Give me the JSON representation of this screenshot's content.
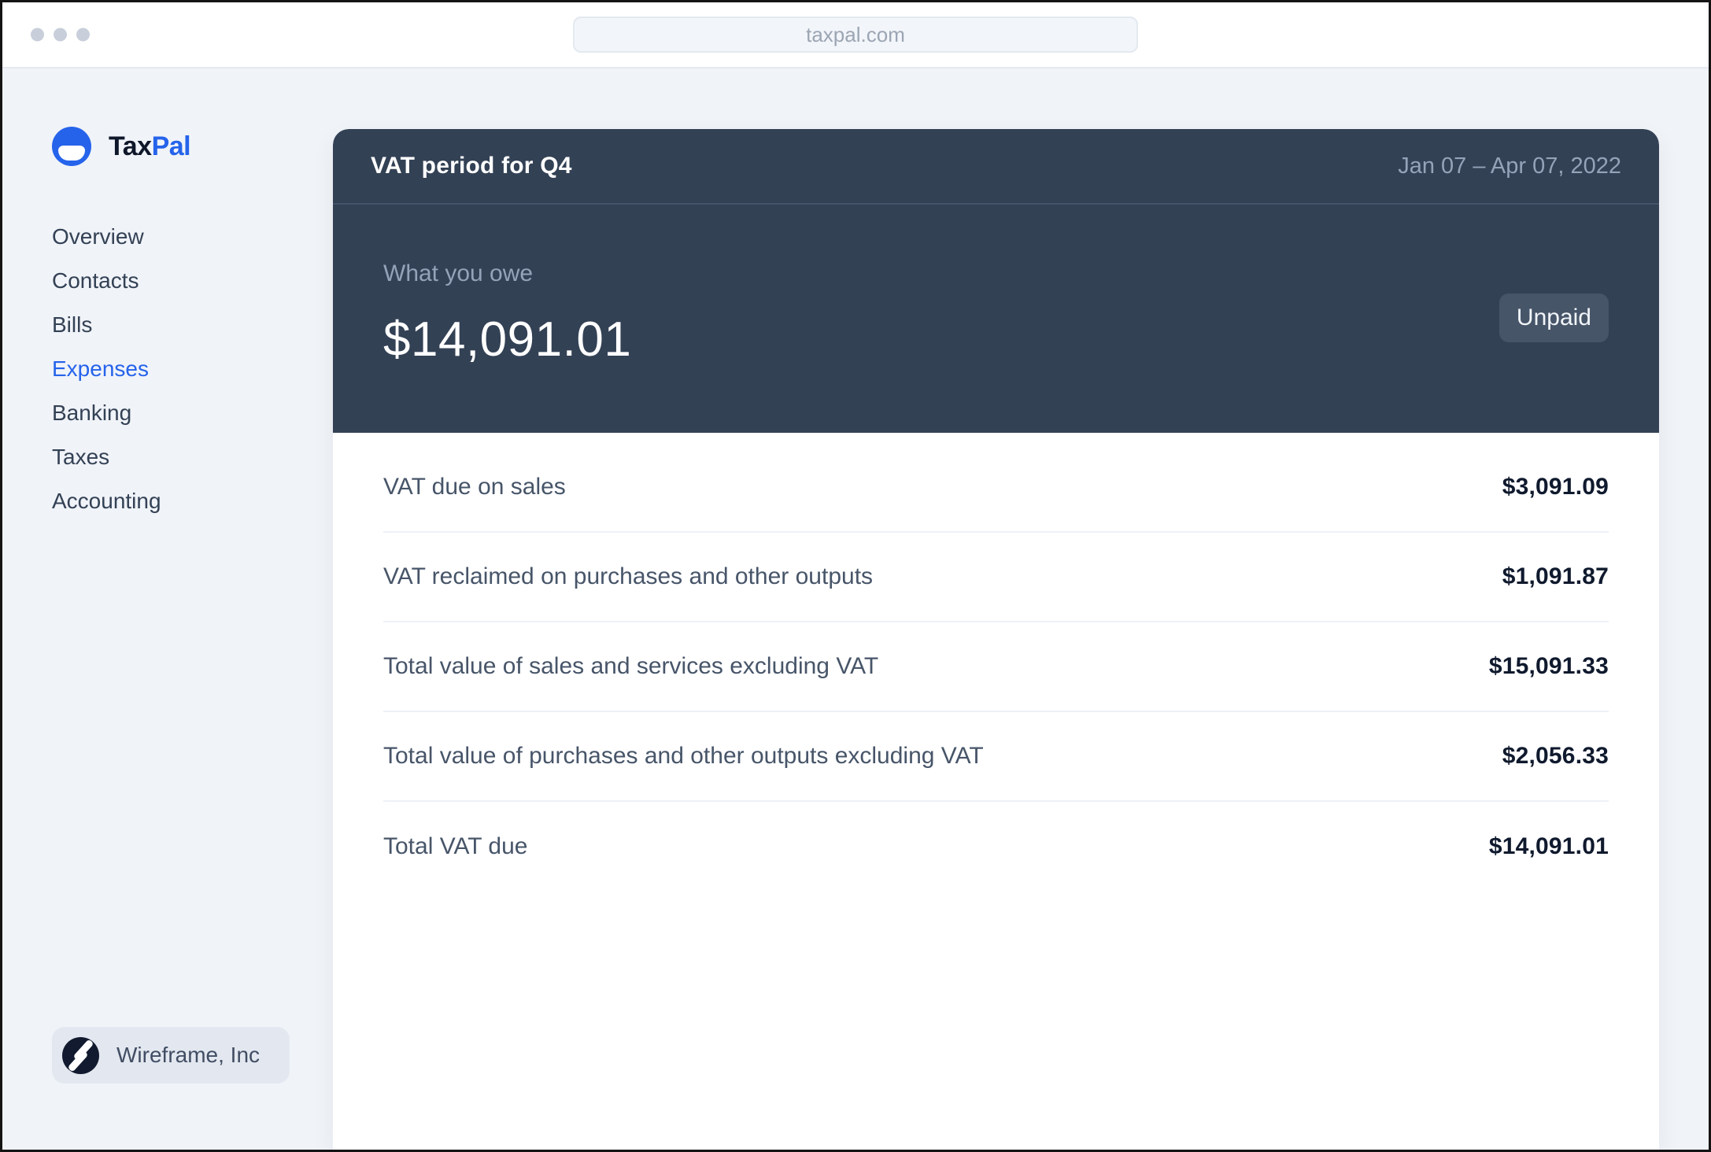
{
  "browser": {
    "url": "taxpal.com"
  },
  "sidebar": {
    "brand": {
      "first": "Tax",
      "second": "Pal"
    },
    "nav": [
      {
        "label": "Overview",
        "active": false
      },
      {
        "label": "Contacts",
        "active": false
      },
      {
        "label": "Bills",
        "active": false
      },
      {
        "label": "Expenses",
        "active": true
      },
      {
        "label": "Banking",
        "active": false
      },
      {
        "label": "Taxes",
        "active": false
      },
      {
        "label": "Accounting",
        "active": false
      }
    ],
    "company": "Wireframe, Inc"
  },
  "panel": {
    "header": {
      "title": "VAT period for Q4",
      "date_range": "Jan 07 – Apr 07, 2022"
    },
    "summary": {
      "label": "What you owe",
      "amount": "$14,091.01",
      "status": "Unpaid"
    },
    "rows": [
      {
        "label": "VAT due on sales",
        "amount": "$3,091.09"
      },
      {
        "label": "VAT reclaimed on purchases and other outputs",
        "amount": "$1,091.87"
      },
      {
        "label": "Total value of sales and services excluding VAT",
        "amount": "$15,091.33"
      },
      {
        "label": "Total value of purchases and other outputs excluding VAT",
        "amount": "$2,056.33"
      },
      {
        "label": "Total VAT due",
        "amount": "$14,091.01"
      }
    ]
  },
  "colors": {
    "accent": "#2563EB",
    "panel_dark": "#334155",
    "badge_bg": "#475569",
    "muted_text": "#94A3B8",
    "page_bg": "#F0F3F8"
  }
}
